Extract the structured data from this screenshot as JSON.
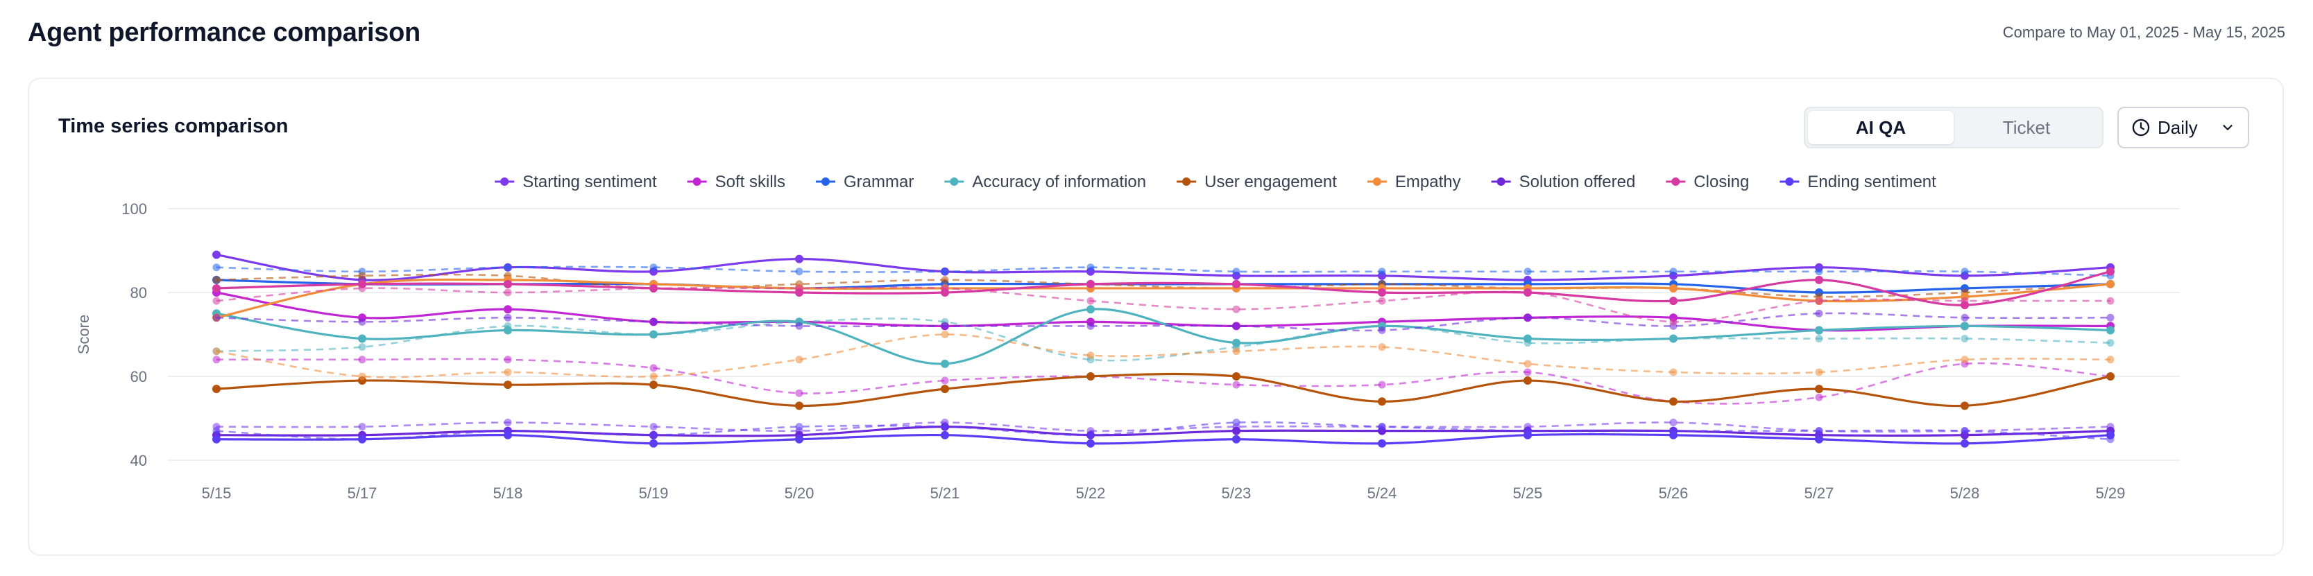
{
  "page": {
    "title": "Agent performance comparison",
    "compare_range": "Compare to May 01, 2025 - May 15, 2025"
  },
  "card": {
    "title": "Time series comparison",
    "toggle": {
      "options": [
        "AI QA",
        "Ticket"
      ],
      "selected": "AI QA"
    },
    "period": {
      "value": "Daily"
    }
  },
  "chart_data": {
    "type": "line",
    "ylabel": "Score",
    "xlabel": "",
    "ylim": [
      40,
      100
    ],
    "yticks": [
      40,
      60,
      80,
      100
    ],
    "grid": true,
    "legend": "top-center",
    "categories": [
      "5/15",
      "5/17",
      "5/18",
      "5/19",
      "5/20",
      "5/21",
      "5/22",
      "5/23",
      "5/24",
      "5/25",
      "5/26",
      "5/27",
      "5/28",
      "5/29"
    ],
    "series": [
      {
        "name": "Starting sentiment",
        "color": "#7c3aed",
        "values": [
          89,
          83,
          86,
          85,
          88,
          85,
          85,
          84,
          84,
          83,
          84,
          86,
          84,
          86
        ],
        "compare": [
          48,
          48,
          49,
          48,
          47,
          49,
          47,
          48,
          48,
          48,
          49,
          47,
          47,
          48
        ]
      },
      {
        "name": "Soft skills",
        "color": "#c026d3",
        "values": [
          80,
          74,
          76,
          73,
          73,
          72,
          73,
          72,
          73,
          74,
          74,
          71,
          72,
          72
        ],
        "compare": [
          64,
          64,
          64,
          62,
          56,
          59,
          60,
          58,
          58,
          61,
          54,
          55,
          63,
          60
        ]
      },
      {
        "name": "Grammar",
        "color": "#2563eb",
        "values": [
          83,
          82,
          82,
          82,
          81,
          82,
          82,
          82,
          82,
          82,
          82,
          80,
          81,
          82
        ],
        "compare": [
          86,
          85,
          86,
          86,
          85,
          85,
          86,
          85,
          85,
          85,
          85,
          85,
          85,
          84
        ]
      },
      {
        "name": "Accuracy of information",
        "color": "#4fb3bf",
        "values": [
          75,
          69,
          71,
          70,
          73,
          63,
          76,
          68,
          72,
          69,
          69,
          71,
          72,
          71
        ],
        "compare": [
          66,
          67,
          72,
          70,
          73,
          73,
          64,
          67,
          72,
          68,
          69,
          69,
          69,
          68
        ]
      },
      {
        "name": "User engagement",
        "color": "#b45309",
        "values": [
          57,
          59,
          58,
          58,
          53,
          57,
          60,
          60,
          54,
          59,
          54,
          57,
          53,
          60
        ],
        "compare": [
          83,
          84,
          84,
          81,
          82,
          83,
          82,
          81,
          82,
          81,
          81,
          79,
          80,
          82
        ]
      },
      {
        "name": "Empathy",
        "color": "#f08c3a",
        "values": [
          74,
          82,
          83,
          82,
          81,
          81,
          81,
          81,
          81,
          81,
          81,
          78,
          79,
          82
        ],
        "compare": [
          66,
          60,
          61,
          60,
          64,
          70,
          65,
          66,
          67,
          63,
          61,
          61,
          64,
          64
        ]
      },
      {
        "name": "Solution offered",
        "color": "#6d28d9",
        "values": [
          46,
          46,
          47,
          46,
          46,
          48,
          46,
          47,
          47,
          47,
          47,
          46,
          46,
          47
        ],
        "compare": [
          74,
          73,
          74,
          73,
          72,
          72,
          72,
          72,
          71,
          74,
          72,
          75,
          74,
          74
        ]
      },
      {
        "name": "Closing",
        "color": "#d63aa1",
        "values": [
          81,
          82,
          82,
          81,
          80,
          80,
          82,
          82,
          80,
          80,
          78,
          83,
          77,
          85
        ],
        "compare": [
          78,
          81,
          80,
          81,
          81,
          81,
          78,
          76,
          78,
          80,
          73,
          78,
          78,
          78
        ]
      },
      {
        "name": "Ending sentiment",
        "color": "#5b3df5",
        "values": [
          45,
          45,
          46,
          44,
          45,
          46,
          44,
          45,
          44,
          46,
          46,
          45,
          44,
          46
        ],
        "compare": [
          47,
          45,
          47,
          46,
          48,
          48,
          46,
          49,
          48,
          47,
          47,
          47,
          47,
          45
        ]
      }
    ]
  }
}
